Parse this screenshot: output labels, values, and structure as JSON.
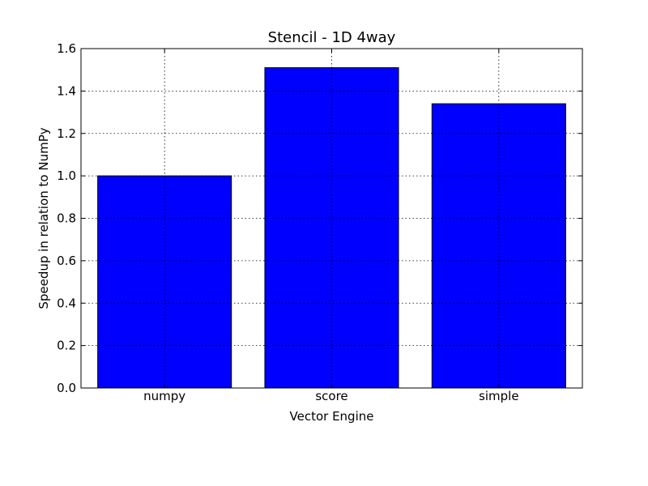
{
  "chart_data": {
    "type": "bar",
    "title": "Stencil - 1D 4way",
    "xlabel": "Vector Engine",
    "ylabel": "Speedup in relation to NumPy",
    "categories": [
      "numpy",
      "score",
      "simple"
    ],
    "values": [
      1.0,
      1.51,
      1.34
    ],
    "ylim": [
      0,
      1.6
    ],
    "yticks": [
      "0.0",
      "0.2",
      "0.4",
      "0.6",
      "0.8",
      "1.0",
      "1.2",
      "1.4",
      "1.6"
    ],
    "grid": true,
    "bar_color": "#0000ff",
    "legend": "none"
  }
}
